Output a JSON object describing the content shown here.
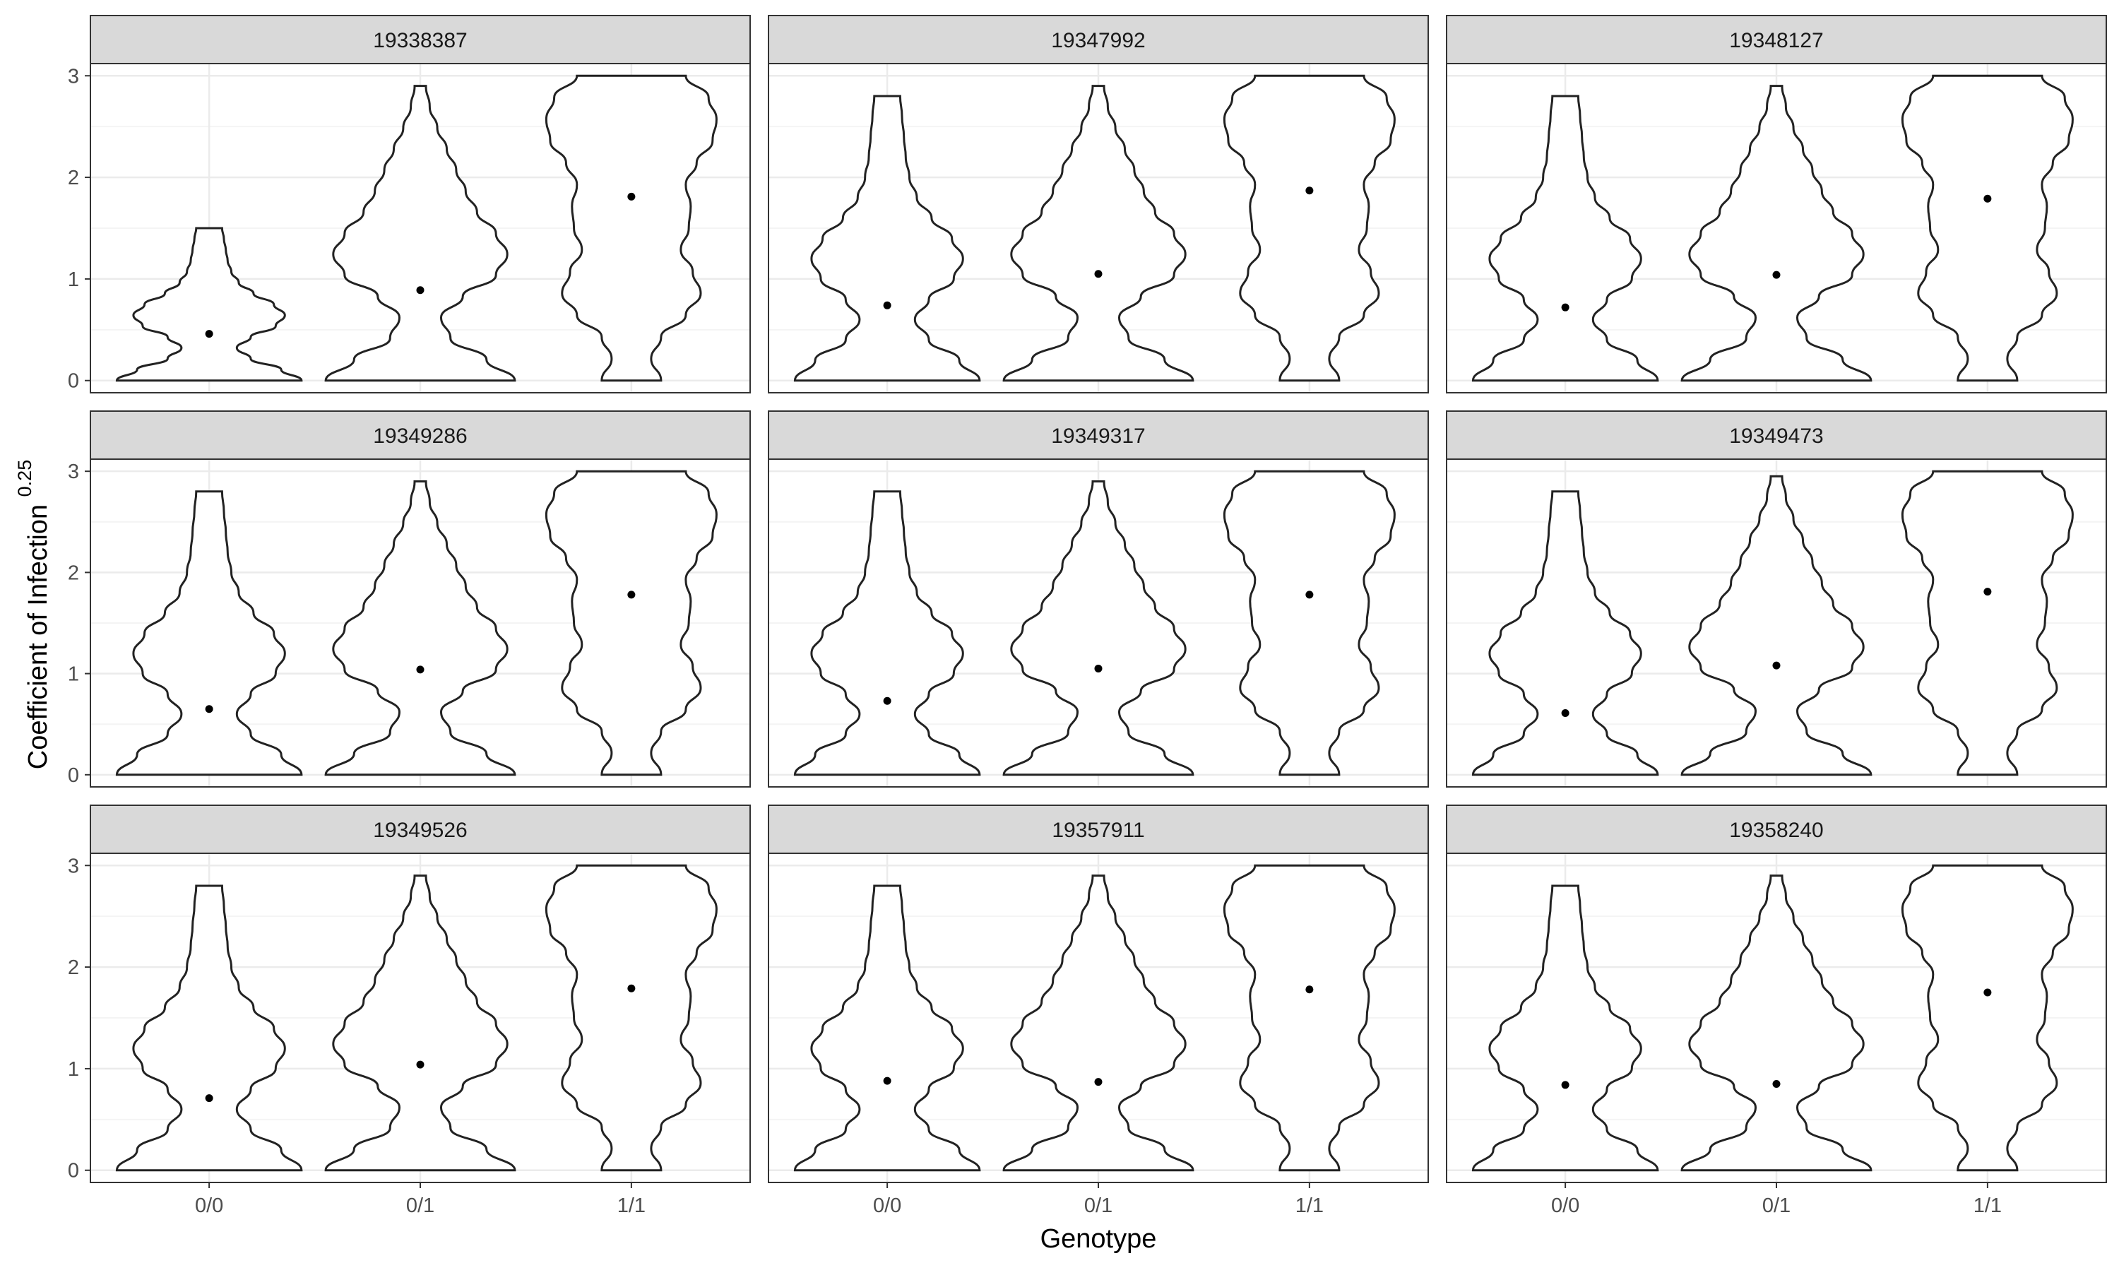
{
  "chart_data": {
    "type": "violin",
    "layout": "facet-grid",
    "xlabel": "Genotype",
    "ylabel": "Coefficient of Infection",
    "ylabel_superscript": "0.25",
    "categories": [
      "0/0",
      "0/1",
      "1/1"
    ],
    "y_ticks": [
      0,
      1,
      2,
      3
    ],
    "ylim": [
      -0.12,
      3.12
    ],
    "grid": true,
    "facets": [
      {
        "title": "19338387",
        "medians": [
          0.46,
          0.89,
          1.81
        ],
        "max": [
          1.5,
          2.9,
          3.0
        ]
      },
      {
        "title": "19347992",
        "medians": [
          0.74,
          1.05,
          1.87
        ],
        "max": [
          2.8,
          2.9,
          3.0
        ]
      },
      {
        "title": "19348127",
        "medians": [
          0.72,
          1.04,
          1.79
        ],
        "max": [
          2.8,
          2.9,
          3.0
        ]
      },
      {
        "title": "19349286",
        "medians": [
          0.65,
          1.04,
          1.78
        ],
        "max": [
          2.8,
          2.9,
          3.0
        ]
      },
      {
        "title": "19349317",
        "medians": [
          0.73,
          1.05,
          1.78
        ],
        "max": [
          2.8,
          2.9,
          3.0
        ]
      },
      {
        "title": "19349473",
        "medians": [
          0.61,
          1.08,
          1.81
        ],
        "max": [
          2.8,
          2.95,
          3.0
        ]
      },
      {
        "title": "19349526",
        "medians": [
          0.71,
          1.04,
          1.79
        ],
        "max": [
          2.8,
          2.9,
          3.0
        ]
      },
      {
        "title": "19357911",
        "medians": [
          0.88,
          0.87,
          1.78
        ],
        "max": [
          2.8,
          2.9,
          3.0
        ]
      },
      {
        "title": "19358240",
        "medians": [
          0.84,
          0.85,
          1.75
        ],
        "max": [
          2.8,
          2.9,
          3.0
        ]
      }
    ]
  },
  "colors": {
    "strip_fill": "#d9d9d9",
    "panel_border": "#333333",
    "grid_major": "#ebebeb",
    "grid_minor": "#f4f4f4",
    "violin_stroke": "#222222",
    "point": "#000000"
  }
}
